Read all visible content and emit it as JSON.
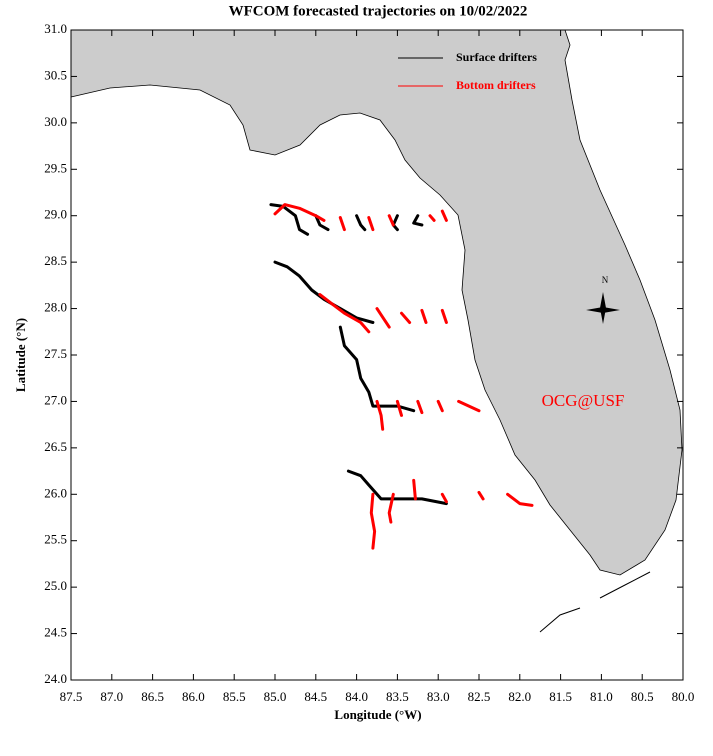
{
  "chart_data": {
    "type": "trajectory",
    "title": "WFCOM forecasted trajectories on 10/02/2022",
    "x_label": "Longitude (°W)",
    "y_label": "Latitude (°N)",
    "annotation": "OCG@USF",
    "compass_label": "N",
    "legend": "upper right",
    "xlim": [
      87.5,
      80.0
    ],
    "ylim": [
      24.0,
      31.0
    ],
    "xticks": [
      87.5,
      {
        "value": 87,
        "label": "87.0"
      },
      86.5,
      {
        "value": 86,
        "label": "86.0"
      },
      85.5,
      {
        "value": 85,
        "label": "85.0"
      },
      84.5,
      {
        "value": 84,
        "label": "84.0"
      },
      83.5,
      {
        "value": 83,
        "label": "83.0"
      },
      82.5,
      {
        "value": 82,
        "label": "82.0"
      },
      81.5,
      {
        "value": 81,
        "label": "81.0"
      },
      80.5,
      {
        "value": 80,
        "label": "80.0"
      }
    ],
    "yticks": [
      {
        "value": 24,
        "label": "24.0"
      },
      24.5,
      {
        "value": 25,
        "label": "25.0"
      },
      25.5,
      {
        "value": 26,
        "label": "26.0"
      },
      26.5,
      {
        "value": 27,
        "label": "27.0"
      },
      27.5,
      {
        "value": 28,
        "label": "28.0"
      },
      28.5,
      {
        "value": 29,
        "label": "29.0"
      },
      29.5,
      {
        "value": 30,
        "label": "30.0"
      },
      30.5,
      {
        "value": 31,
        "label": "31.0"
      }
    ],
    "series": [
      {
        "name": "Surface drifters",
        "color": "#000000",
        "tracks": [
          {
            "x": [
              85.05,
              84.9,
              84.75,
              84.7,
              84.6
            ],
            "y": [
              29.12,
              29.1,
              29.0,
              28.85,
              28.8
            ]
          },
          {
            "x": [
              84.5,
              84.45,
              84.35
            ],
            "y": [
              29.0,
              28.9,
              28.85
            ]
          },
          {
            "x": [
              84.0,
              83.95,
              83.9
            ],
            "y": [
              29.0,
              28.9,
              28.85
            ]
          },
          {
            "x": [
              83.5,
              83.55,
              83.5
            ],
            "y": [
              29.0,
              28.9,
              28.85
            ]
          },
          {
            "x": [
              83.25,
              83.3,
              83.2
            ],
            "y": [
              29.0,
              28.92,
              28.9
            ]
          },
          {
            "x": [
              85.0,
              84.85,
              84.7,
              84.55,
              84.4,
              84.2,
              84.0,
              83.8
            ],
            "y": [
              28.5,
              28.45,
              28.35,
              28.2,
              28.1,
              28.0,
              27.9,
              27.85
            ]
          },
          {
            "x": [
              84.2,
              84.15,
              84.0,
              83.95,
              83.85,
              83.8,
              83.5,
              83.3
            ],
            "y": [
              27.8,
              27.6,
              27.45,
              27.25,
              27.1,
              26.95,
              26.95,
              26.9
            ]
          },
          {
            "x": [
              84.1,
              83.95,
              83.85,
              83.7,
              83.5,
              83.2,
              82.9
            ],
            "y": [
              26.25,
              26.2,
              26.1,
              25.95,
              25.95,
              25.95,
              25.9
            ]
          }
        ]
      },
      {
        "name": "Bottom drifters",
        "color": "#ff0000",
        "tracks": [
          {
            "x": [
              85.0,
              84.88,
              84.7,
              84.5,
              84.4
            ],
            "y": [
              29.02,
              29.12,
              29.08,
              29.0,
              28.95
            ]
          },
          {
            "x": [
              84.2,
              84.15
            ],
            "y": [
              28.98,
              28.85
            ]
          },
          {
            "x": [
              83.85,
              83.8
            ],
            "y": [
              28.98,
              28.85
            ]
          },
          {
            "x": [
              83.6,
              83.55
            ],
            "y": [
              29.0,
              28.9
            ]
          },
          {
            "x": [
              83.1,
              83.05
            ],
            "y": [
              29.0,
              28.95
            ]
          },
          {
            "x": [
              82.95,
              82.9
            ],
            "y": [
              29.05,
              28.95
            ]
          },
          {
            "x": [
              84.45,
              84.3,
              84.15,
              83.95,
              83.85
            ],
            "y": [
              28.15,
              28.05,
              27.95,
              27.85,
              27.75
            ]
          },
          {
            "x": [
              83.75,
              83.6
            ],
            "y": [
              28.0,
              27.8
            ]
          },
          {
            "x": [
              83.45,
              83.35
            ],
            "y": [
              27.95,
              27.85
            ]
          },
          {
            "x": [
              83.2,
              83.15
            ],
            "y": [
              27.98,
              27.85
            ]
          },
          {
            "x": [
              82.95,
              82.9
            ],
            "y": [
              27.98,
              27.85
            ]
          },
          {
            "x": [
              83.75,
              83.7,
              83.68
            ],
            "y": [
              27.0,
              26.85,
              26.7
            ]
          },
          {
            "x": [
              83.5,
              83.45
            ],
            "y": [
              27.0,
              26.85
            ]
          },
          {
            "x": [
              83.25,
              83.2
            ],
            "y": [
              27.0,
              26.88
            ]
          },
          {
            "x": [
              83.0,
              82.95
            ],
            "y": [
              27.0,
              26.9
            ]
          },
          {
            "x": [
              82.75,
              82.5
            ],
            "y": [
              27.0,
              26.9
            ]
          },
          {
            "x": [
              83.8,
              83.82,
              83.78,
              83.8
            ],
            "y": [
              26.0,
              25.8,
              25.6,
              25.42
            ]
          },
          {
            "x": [
              83.55,
              83.6,
              83.58
            ],
            "y": [
              26.0,
              25.8,
              25.7
            ]
          },
          {
            "x": [
              83.3,
              83.28
            ],
            "y": [
              26.15,
              25.95
            ]
          },
          {
            "x": [
              82.95,
              82.9
            ],
            "y": [
              26.0,
              25.92
            ]
          },
          {
            "x": [
              82.5,
              82.45
            ],
            "y": [
              26.02,
              25.95
            ]
          },
          {
            "x": [
              82.15,
              82.0,
              81.85
            ],
            "y": [
              26.0,
              25.9,
              25.88
            ]
          }
        ]
      }
    ]
  }
}
